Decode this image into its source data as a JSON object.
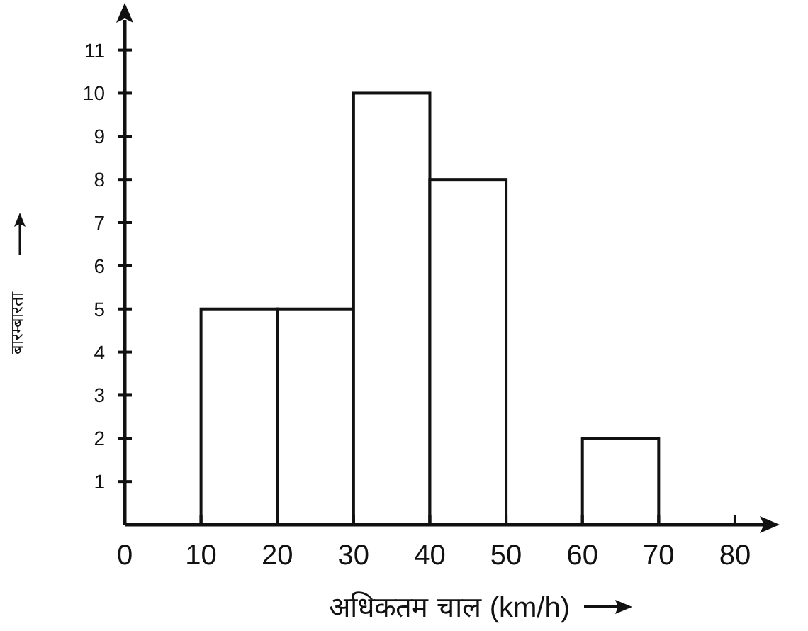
{
  "chart_data": {
    "type": "histogram",
    "xlabel": "अधिकतम चाल (km/h)",
    "ylabel": "बारम्बारता",
    "bins": [
      10,
      20,
      30,
      40,
      50,
      60,
      70
    ],
    "values": [
      5,
      5,
      10,
      8,
      0,
      2
    ],
    "color": "#ffffff",
    "xlim": [
      0,
      84
    ],
    "ylim": [
      0,
      11.7
    ],
    "xticks": [
      0,
      10,
      20,
      30,
      40,
      50,
      60,
      70,
      80
    ],
    "yticks": [
      1,
      2,
      3,
      4,
      5,
      6,
      7,
      8,
      9,
      10,
      11
    ],
    "grid": false
  }
}
